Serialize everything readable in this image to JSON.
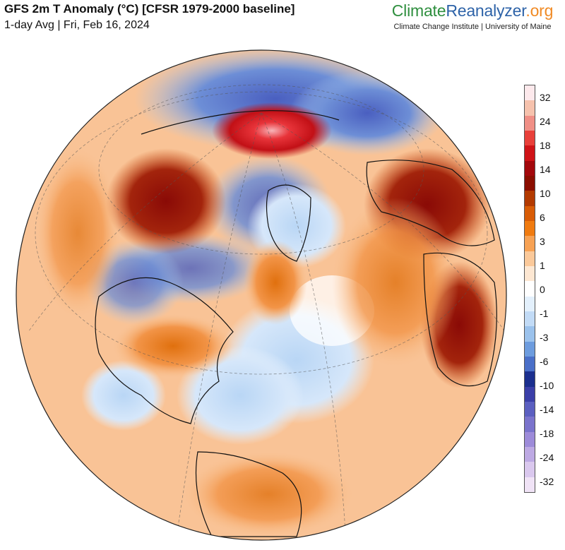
{
  "header": {
    "title": "GFS 2m T Anomaly (°C) [CFSR 1979-2000 baseline]",
    "subtitle": "1-day Avg | Fri, Feb 16, 2024"
  },
  "brand": {
    "part1": "Climate",
    "part2": "Reanalyzer",
    "part3": ".org",
    "tagline": "Climate Change Institute | University of Maine",
    "colors": {
      "part1": "#2f8f3f",
      "part2": "#2e63a8",
      "part3": "#f08a24"
    }
  },
  "legend": {
    "labels": [
      "32",
      "24",
      "18",
      "14",
      "10",
      "6",
      "3",
      "1",
      "0",
      "-1",
      "-3",
      "-6",
      "-10",
      "-14",
      "-18",
      "-24",
      "-32"
    ],
    "colors": [
      "#fde9ec",
      "#f6c2ad",
      "#f08f86",
      "#e8403a",
      "#cf1317",
      "#a3080c",
      "#8b0e00",
      "#b33a00",
      "#d85c06",
      "#f07b10",
      "#f7a254",
      "#fbc99a",
      "#fde7d2",
      "#ffffff",
      "#e3f0fc",
      "#c2dbf6",
      "#9bc2ec",
      "#6d9cde",
      "#4a6fc8",
      "#1b2f8e",
      "#3b3fa8",
      "#5b5fc0",
      "#7a73cc",
      "#9d8bd9",
      "#bda9e3",
      "#dac8ee",
      "#f0e3f6"
    ]
  },
  "map": {
    "type": "orthographic globe, temperature anomaly",
    "land_outline_color": "#111111",
    "ocean_neutral": "#ffffff"
  }
}
